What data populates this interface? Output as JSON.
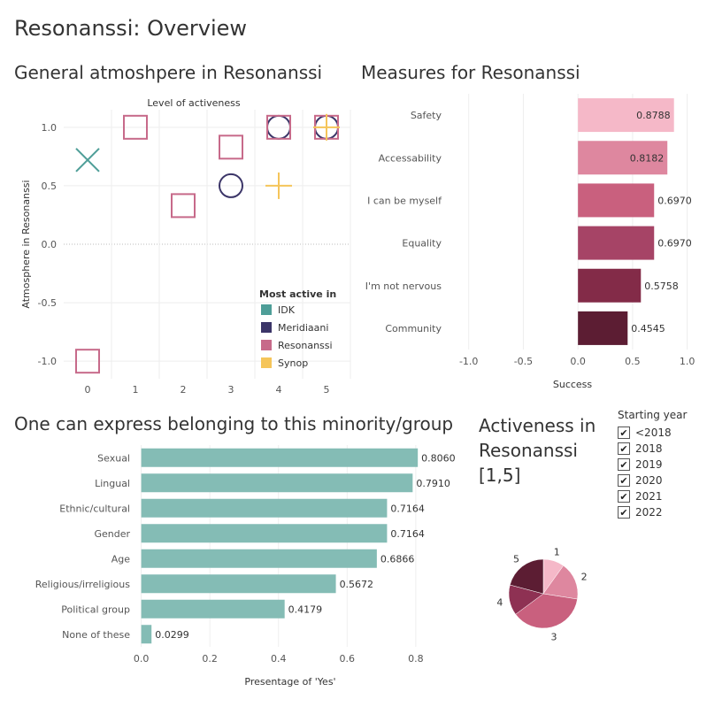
{
  "page_title": "Resonanssi: Overview",
  "sections": {
    "atmosphere_title": "General atmoshpere in Resonanssi",
    "measures_title": "Measures for Resonanssi",
    "belonging_title": "One can express belonging to this minority/group",
    "activeness_title_lines": [
      "Activeness in",
      "Resonanssi",
      "[1,5]"
    ]
  },
  "filter": {
    "title": "Starting year",
    "options": [
      {
        "label": "<2018",
        "checked": true
      },
      {
        "label": "2018",
        "checked": true
      },
      {
        "label": "2019",
        "checked": true
      },
      {
        "label": "2020",
        "checked": true
      },
      {
        "label": "2021",
        "checked": true
      },
      {
        "label": "2022",
        "checked": true
      }
    ]
  },
  "chart_data": [
    {
      "type": "scatter",
      "id": "atmosphere",
      "title": "Level of activeness",
      "xlabel": "",
      "ylabel": "Atmosphere in Resonanssi",
      "xlim": [
        -0.5,
        5.5
      ],
      "ylim": [
        -1.15,
        1.15
      ],
      "xticks": [
        "0",
        "1",
        "2",
        "3",
        "4",
        "5"
      ],
      "yticks": [
        {
          "v": 1.0,
          "label": "1.0"
        },
        {
          "v": 0.5,
          "label": "0.5"
        },
        {
          "v": 0.0,
          "label": "0.0"
        },
        {
          "v": -0.5,
          "label": "-0.5"
        },
        {
          "v": -1.0,
          "label": "-1.0"
        }
      ],
      "legend_title": "Most active in",
      "legend_position": "bottom-right",
      "series": [
        {
          "name": "IDK",
          "color": "#4e9e98",
          "marker": "x",
          "points": [
            [
              0,
              0.72
            ]
          ]
        },
        {
          "name": "Meridiaani",
          "color": "#3b3568",
          "marker": "circle",
          "points": [
            [
              3,
              0.5
            ],
            [
              4,
              1.0
            ],
            [
              5,
              1.0
            ]
          ]
        },
        {
          "name": "Resonanssi",
          "color": "#c76a8a",
          "marker": "square",
          "points": [
            [
              0,
              -1.0
            ],
            [
              1,
              1.0
            ],
            [
              2,
              0.33
            ],
            [
              3,
              0.83
            ],
            [
              4,
              1.0
            ],
            [
              5,
              1.0
            ]
          ]
        },
        {
          "name": "Synop",
          "color": "#f5c55a",
          "marker": "plus",
          "points": [
            [
              4,
              0.5
            ],
            [
              5,
              1.0
            ]
          ]
        }
      ]
    },
    {
      "type": "bar",
      "id": "measures",
      "orientation": "horizontal",
      "categories": [
        "Safety",
        "Accessability",
        "I can be myself",
        "Equality",
        "I'm not nervous",
        "Community"
      ],
      "values": [
        0.8788,
        0.8182,
        0.697,
        0.697,
        0.5758,
        0.4545
      ],
      "value_labels": [
        "0.8788",
        "0.8182",
        "0.6970",
        "0.6970",
        "0.5758",
        "0.4545"
      ],
      "colors": [
        "#f5b8c8",
        "#de879f",
        "#c9607e",
        "#a64466",
        "#832b48",
        "#5c1d33"
      ],
      "xlabel": "Success",
      "xlim": [
        -1.2,
        1.1
      ],
      "xticks": [
        {
          "v": -1.0,
          "label": "-1.0"
        },
        {
          "v": -0.5,
          "label": "-0.5"
        },
        {
          "v": 0.0,
          "label": "0.0"
        },
        {
          "v": 0.5,
          "label": "0.5"
        },
        {
          "v": 1.0,
          "label": "1.0"
        }
      ]
    },
    {
      "type": "bar",
      "id": "belonging",
      "orientation": "horizontal",
      "categories": [
        "Sexual",
        "Lingual",
        "Ethnic/cultural",
        "Gender",
        "Age",
        "Religious/irreligious",
        "Political group",
        "None of these"
      ],
      "values": [
        0.806,
        0.791,
        0.7164,
        0.7164,
        0.6866,
        0.5672,
        0.4179,
        0.0299
      ],
      "value_labels": [
        "0.8060",
        "0.7910",
        "0.7164",
        "0.7164",
        "0.6866",
        "0.5672",
        "0.4179",
        "0.0299"
      ],
      "color": "#84bcb5",
      "xlabel": "Presentage of 'Yes'",
      "xlim": [
        -0.03,
        0.95
      ],
      "xticks": [
        {
          "v": 0.0,
          "label": "0.0"
        },
        {
          "v": 0.2,
          "label": "0.2"
        },
        {
          "v": 0.4,
          "label": "0.4"
        },
        {
          "v": 0.6,
          "label": "0.6"
        },
        {
          "v": 0.8,
          "label": "0.8"
        }
      ]
    },
    {
      "type": "pie",
      "id": "activeness",
      "categories": [
        "1",
        "2",
        "3",
        "4",
        "5"
      ],
      "values": [
        9,
        16,
        34,
        13,
        19
      ],
      "colors": [
        "#f5b8c8",
        "#de879f",
        "#c9607e",
        "#8e3153",
        "#5c1d33"
      ]
    }
  ]
}
